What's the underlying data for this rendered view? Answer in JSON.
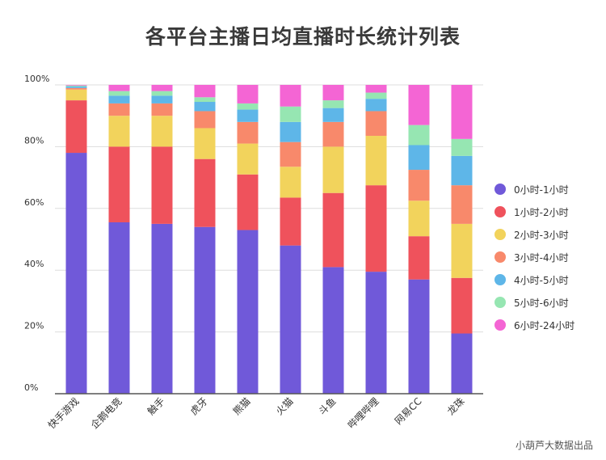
{
  "page_title": "各平台主播日均直播时长统计列表",
  "source_note": "小葫芦大数据出品",
  "chart_data": {
    "type": "bar",
    "stacked": true,
    "percent": true,
    "title": "各平台主播日均直播时长统计列表",
    "ylim": [
      0,
      100
    ],
    "yticks": [
      "0%",
      "20%",
      "40%",
      "60%",
      "80%",
      "100%"
    ],
    "categories": [
      "快手游戏",
      "企鹅电竞",
      "触手",
      "虎牙",
      "熊猫",
      "火猫",
      "斗鱼",
      "哔哩哔哩",
      "网易CC",
      "龙珠"
    ],
    "legend_position": "right",
    "series": [
      {
        "name": "0小时-1小时",
        "color": "#7059d9",
        "values": [
          78,
          55.5,
          55,
          54,
          53,
          48,
          41,
          39.5,
          37,
          19.5
        ]
      },
      {
        "name": "1小时-2小时",
        "color": "#ef525c",
        "values": [
          17,
          24.5,
          25,
          22,
          18,
          15.5,
          24,
          28,
          14,
          18
        ]
      },
      {
        "name": "2小时-3小时",
        "color": "#f2d35c",
        "values": [
          3.5,
          10,
          10,
          10,
          10,
          10,
          15,
          16,
          11.5,
          17.5
        ]
      },
      {
        "name": "3小时-4小时",
        "color": "#f8896b",
        "values": [
          0.5,
          4,
          4,
          5.5,
          7,
          8,
          8,
          8,
          10,
          12.5
        ]
      },
      {
        "name": "4小时-5小时",
        "color": "#5eb6e8",
        "values": [
          0.5,
          2.5,
          2.5,
          3,
          4,
          6.5,
          4.5,
          4,
          8,
          9.5
        ]
      },
      {
        "name": "5小时-6小时",
        "color": "#96e6b2",
        "values": [
          0.3,
          1.5,
          1.5,
          1.5,
          2,
          5,
          2.5,
          2,
          6.5,
          5.5
        ]
      },
      {
        "name": "6小时-24小时",
        "color": "#f465d4",
        "values": [
          0.2,
          2,
          2,
          4,
          6,
          7,
          5,
          2.5,
          13,
          17.5
        ]
      }
    ]
  }
}
